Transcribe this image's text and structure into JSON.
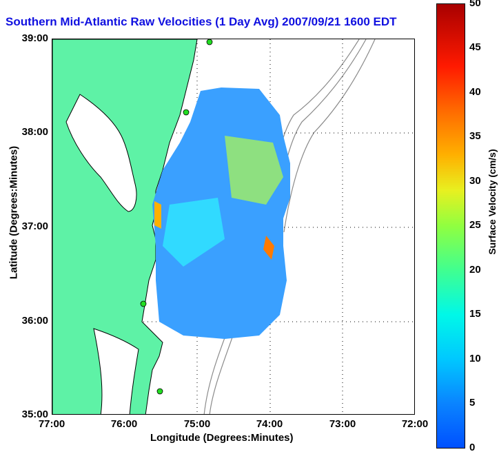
{
  "title": "Southern Mid-Atlantic Raw Velocities (1 Day Avg) 2007/09/21 1600 EDT",
  "axes": {
    "xlabel": "Longitude (Degrees:Minutes)",
    "ylabel": "Latitude (Degrees:Minutes)",
    "x_ticks": [
      "77:00",
      "76:00",
      "75:00",
      "74:00",
      "73:00",
      "72:00"
    ],
    "y_ticks": [
      "39:00",
      "38:00",
      "37:00",
      "36:00",
      "35:00"
    ]
  },
  "colorbar": {
    "label": "Surface Velocity (cm/s)",
    "ticks": [
      "50",
      "45",
      "40",
      "35",
      "30",
      "25",
      "20",
      "15",
      "10",
      "5",
      "0"
    ]
  },
  "colors": {
    "land": "#5ef2a6",
    "title": "#1010e0",
    "station": "#22dd22"
  }
}
